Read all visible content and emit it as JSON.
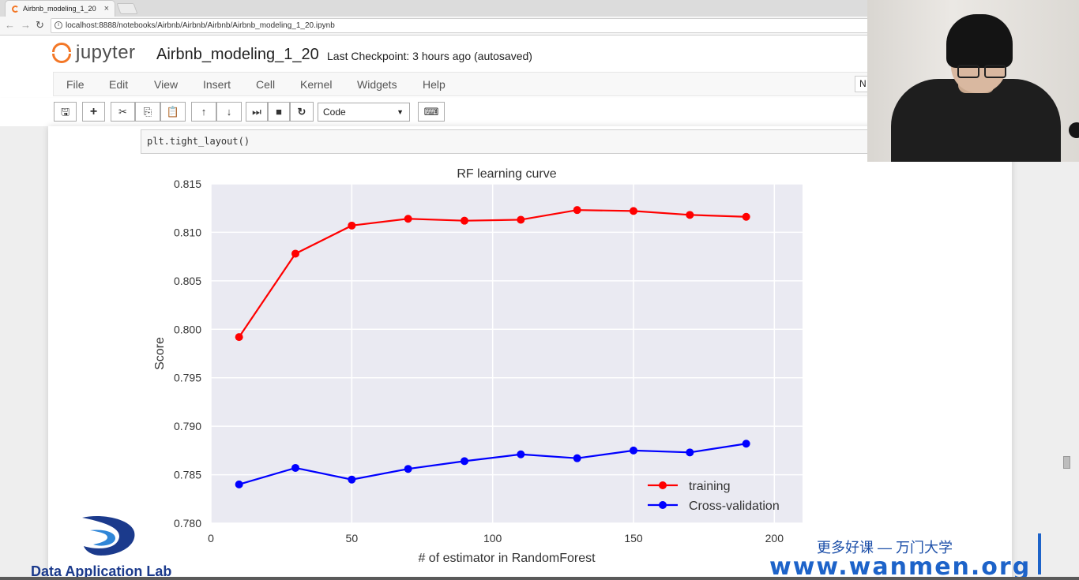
{
  "browser": {
    "tab_title": "Airbnb_modeling_1_20",
    "tab_close": "×",
    "url": "localhost:8888/notebooks/Airbnb/Airbnb/Airbnb/Airbnb_modeling_1_20.ipynb"
  },
  "jupyter": {
    "logo_text": "jupyter",
    "notebook_title": "Airbnb_modeling_1_20",
    "checkpoint": "Last Checkpoint: 3 hours ago (autosaved)",
    "kernel_indicator": "N",
    "menu": [
      "File",
      "Edit",
      "View",
      "Insert",
      "Cell",
      "Kernel",
      "Widgets",
      "Help"
    ],
    "toolbar": {
      "save": "🖫",
      "add": "+",
      "cut": "✂",
      "copy": "⎘",
      "paste": "📋",
      "up": "↑",
      "down": "↓",
      "run": "⏭",
      "stop": "■",
      "restart": "↻",
      "cell_type": "Code",
      "keyboard": "⌨"
    },
    "code_cell": "plt.tight_layout()"
  },
  "chart_data": {
    "type": "line",
    "title": "RF learning curve",
    "xlabel": "# of estimator in RandomForest",
    "ylabel": "Score",
    "xlim": [
      0,
      210
    ],
    "ylim": [
      0.78,
      0.815
    ],
    "xticks": [
      0,
      50,
      100,
      150,
      200
    ],
    "yticks": [
      0.78,
      0.785,
      0.79,
      0.795,
      0.8,
      0.805,
      0.81,
      0.815
    ],
    "x": [
      10,
      30,
      50,
      70,
      90,
      110,
      130,
      150,
      170,
      190
    ],
    "series": [
      {
        "name": "training",
        "color": "#ff0000",
        "values": [
          0.7992,
          0.8078,
          0.8107,
          0.8114,
          0.8112,
          0.8113,
          0.8123,
          0.8122,
          0.8118,
          0.8116
        ]
      },
      {
        "name": "Cross-validation",
        "color": "#0000ff",
        "values": [
          0.784,
          0.7857,
          0.7845,
          0.7856,
          0.7864,
          0.7871,
          0.7867,
          0.7875,
          0.7873,
          0.7882
        ]
      }
    ],
    "grid": true,
    "legend": "lower-right",
    "style": "seaborn-darkgrid"
  },
  "watermarks": {
    "lab_name": "Data Application Lab",
    "cn_slogan": "更多好课 — 万门大学",
    "site": "www.wanmen.org"
  },
  "colors": {
    "jupyter_orange": "#f37726",
    "plot_bg": "#eaeaf2",
    "watermark_blue": "#1d63c9"
  }
}
